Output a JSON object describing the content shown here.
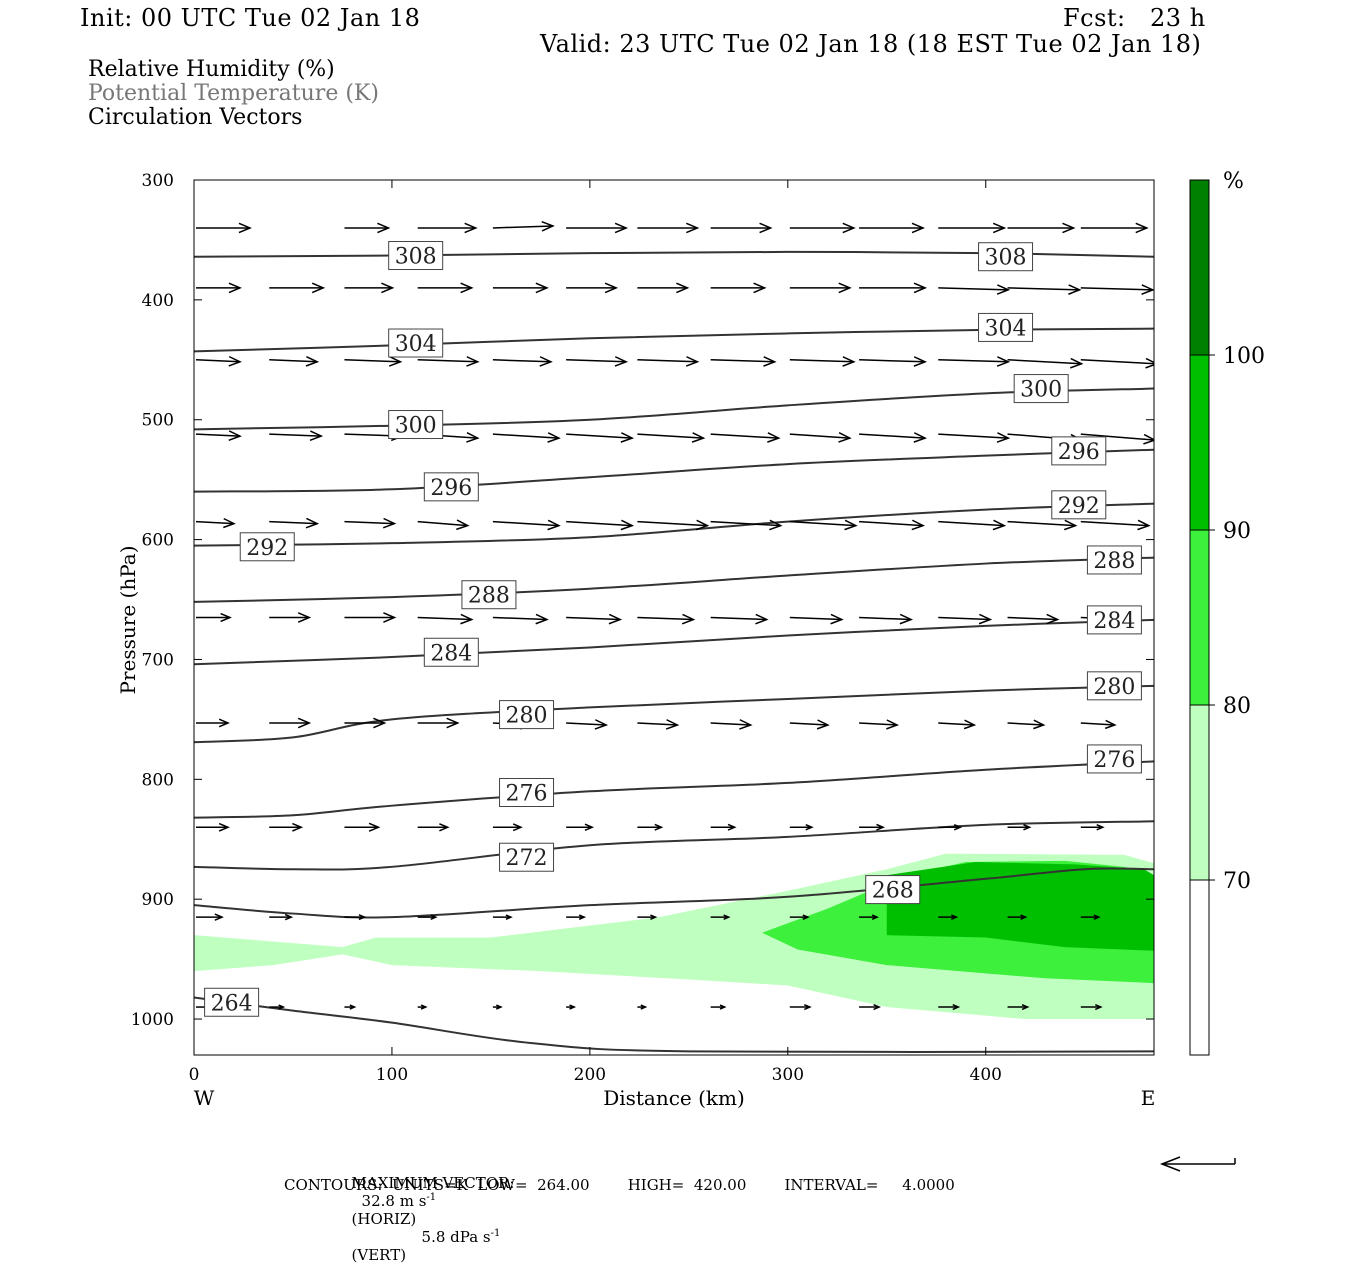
{
  "header": {
    "init": "Init: 00 UTC Tue 02 Jan 18",
    "fcst": "Fcst:   23 h",
    "valid": "Valid: 23 UTC Tue 02 Jan 18 (18 EST Tue 02 Jan 18)"
  },
  "legend": {
    "line1": "Relative Humidity (%)",
    "line2": "Potential Temperature (K)",
    "line3": "Circulation Vectors"
  },
  "footer": {
    "max_vector_label": "MAXIMUM VECTOR:",
    "horiz_value": "32.8 m s",
    "horiz_unit": "(HORIZ)",
    "vert_value": "5.8 dPa s",
    "vert_unit": "(VERT)",
    "exponent": "-1",
    "contours": "CONTOURS:  UNITS=K  LOW=  264.00        HIGH=  420.00        INTERVAL=     4.0000"
  },
  "colors": {
    "rh_70": "#bfffbf",
    "rh_80": "#3cf03c",
    "rh_90": "#00bf00",
    "rh_100": "#008000",
    "contour": "#333333",
    "vector": "#000000"
  },
  "chart_data": {
    "type": "cross-section",
    "xlabel": "Distance (km)",
    "ylabel": "Pressure (hPa)",
    "xlim": [
      0,
      485
    ],
    "ylim": [
      1030,
      300
    ],
    "xticks": [
      0,
      100,
      200,
      300,
      400
    ],
    "yticks": [
      300,
      400,
      500,
      600,
      700,
      800,
      900,
      1000
    ],
    "x_left_label": "W",
    "x_right_label": "E",
    "colorbar": {
      "unit": "%",
      "levels": [
        70,
        80,
        90,
        100
      ],
      "colors": [
        "#bfffbf",
        "#3cf03c",
        "#00bf00",
        "#008000"
      ]
    },
    "theta_contours": [
      {
        "value": 308,
        "points": [
          [
            0,
            364
          ],
          [
            100,
            363
          ],
          [
            200,
            361
          ],
          [
            300,
            360
          ],
          [
            400,
            361
          ],
          [
            485,
            364
          ]
        ],
        "labels": [
          [
            112,
            363
          ],
          [
            410,
            364
          ]
        ]
      },
      {
        "value": 304,
        "points": [
          [
            0,
            443
          ],
          [
            100,
            438
          ],
          [
            200,
            432
          ],
          [
            300,
            428
          ],
          [
            400,
            425
          ],
          [
            485,
            424
          ]
        ],
        "labels": [
          [
            112,
            436
          ],
          [
            410,
            423
          ]
        ]
      },
      {
        "value": 300,
        "points": [
          [
            0,
            508
          ],
          [
            100,
            505
          ],
          [
            200,
            500
          ],
          [
            300,
            488
          ],
          [
            400,
            478
          ],
          [
            485,
            474
          ]
        ],
        "labels": [
          [
            112,
            504
          ],
          [
            428,
            474
          ]
        ]
      },
      {
        "value": 296,
        "points": [
          [
            0,
            560
          ],
          [
            100,
            558
          ],
          [
            200,
            548
          ],
          [
            300,
            537
          ],
          [
            400,
            530
          ],
          [
            485,
            525
          ]
        ],
        "labels": [
          [
            130,
            556
          ],
          [
            447,
            526
          ]
        ]
      },
      {
        "value": 292,
        "points": [
          [
            0,
            605
          ],
          [
            100,
            603
          ],
          [
            200,
            598
          ],
          [
            300,
            585
          ],
          [
            400,
            575
          ],
          [
            485,
            570
          ]
        ],
        "labels": [
          [
            37,
            606
          ],
          [
            447,
            571
          ]
        ]
      },
      {
        "value": 288,
        "points": [
          [
            0,
            652
          ],
          [
            100,
            648
          ],
          [
            200,
            641
          ],
          [
            300,
            630
          ],
          [
            400,
            620
          ],
          [
            485,
            615
          ]
        ],
        "labels": [
          [
            149,
            646
          ],
          [
            465,
            617
          ]
        ]
      },
      {
        "value": 284,
        "points": [
          [
            0,
            704
          ],
          [
            100,
            698
          ],
          [
            200,
            690
          ],
          [
            300,
            680
          ],
          [
            400,
            672
          ],
          [
            485,
            667
          ]
        ],
        "labels": [
          [
            130,
            694
          ],
          [
            465,
            667
          ]
        ]
      },
      {
        "value": 280,
        "points": [
          [
            0,
            769
          ],
          [
            50,
            765
          ],
          [
            100,
            750
          ],
          [
            200,
            740
          ],
          [
            300,
            733
          ],
          [
            400,
            726
          ],
          [
            485,
            722
          ]
        ],
        "labels": [
          [
            168,
            746
          ],
          [
            465,
            722
          ]
        ]
      },
      {
        "value": 276,
        "points": [
          [
            0,
            832
          ],
          [
            50,
            830
          ],
          [
            100,
            822
          ],
          [
            200,
            810
          ],
          [
            300,
            803
          ],
          [
            400,
            792
          ],
          [
            485,
            785
          ]
        ],
        "labels": [
          [
            168,
            811
          ],
          [
            465,
            783
          ]
        ]
      },
      {
        "value": 272,
        "points": [
          [
            0,
            873
          ],
          [
            50,
            875
          ],
          [
            100,
            873
          ],
          [
            200,
            855
          ],
          [
            300,
            848
          ],
          [
            400,
            838
          ],
          [
            485,
            835
          ]
        ],
        "labels": [
          [
            168,
            865
          ],
          [
            0,
            0
          ]
        ]
      },
      {
        "value": 268,
        "points": [
          [
            0,
            905
          ],
          [
            50,
            912
          ],
          [
            100,
            915
          ],
          [
            200,
            905
          ],
          [
            300,
            898
          ],
          [
            400,
            883
          ],
          [
            450,
            875
          ],
          [
            485,
            875
          ]
        ],
        "labels": [
          [
            353,
            892
          ],
          [
            0,
            0
          ]
        ]
      },
      {
        "value": 264,
        "points": [
          [
            0,
            982
          ],
          [
            50,
            993
          ],
          [
            100,
            1003
          ],
          [
            170,
            1020
          ],
          [
            250,
            1027
          ],
          [
            485,
            1027
          ]
        ],
        "labels": [
          [
            19,
            986
          ],
          [
            0,
            0
          ]
        ]
      }
    ],
    "rh_fill": {
      "70": [
        [
          0,
          930
        ],
        [
          75,
          940
        ],
        [
          92,
          932
        ],
        [
          150,
          932
        ],
        [
          185,
          925
        ],
        [
          235,
          915
        ],
        [
          300,
          893
        ],
        [
          350,
          875
        ],
        [
          380,
          862
        ],
        [
          470,
          863
        ],
        [
          485,
          870
        ],
        [
          485,
          1000
        ],
        [
          420,
          1000
        ],
        [
          350,
          990
        ],
        [
          300,
          972
        ],
        [
          250,
          967
        ],
        [
          175,
          960
        ],
        [
          100,
          955
        ],
        [
          75,
          946
        ],
        [
          40,
          955
        ],
        [
          0,
          960
        ]
      ],
      "80": [
        [
          287,
          928
        ],
        [
          320,
          908
        ],
        [
          360,
          880
        ],
        [
          390,
          869
        ],
        [
          440,
          868
        ],
        [
          470,
          873
        ],
        [
          485,
          880
        ],
        [
          485,
          970
        ],
        [
          430,
          966
        ],
        [
          350,
          955
        ],
        [
          305,
          942
        ]
      ],
      "90": [
        [
          350,
          930
        ],
        [
          350,
          880
        ],
        [
          395,
          869
        ],
        [
          445,
          871
        ],
        [
          480,
          875
        ],
        [
          485,
          880
        ],
        [
          485,
          943
        ],
        [
          440,
          940
        ],
        [
          400,
          932
        ]
      ]
    },
    "vectors": [
      {
        "p": 340,
        "x": [
          0,
          75,
          112,
          150,
          187,
          223,
          260,
          300,
          335,
          375,
          410,
          447
        ],
        "u": [
          27,
          22,
          29,
          30,
          30,
          30,
          30,
          32,
          32,
          33,
          33,
          33
        ],
        "v": [
          0,
          0,
          0,
          -1,
          0,
          0,
          0,
          0,
          0,
          0,
          0,
          0
        ]
      },
      {
        "p": 390,
        "x": [
          0,
          37,
          75,
          112,
          150,
          187,
          223,
          260,
          300,
          335,
          375,
          410,
          447
        ],
        "u": [
          22,
          27,
          24,
          27,
          27,
          25,
          25,
          27,
          30,
          33,
          35,
          36,
          36
        ],
        "v": [
          0,
          0,
          0,
          0,
          0,
          0,
          0,
          0,
          0,
          0,
          1,
          1,
          1
        ]
      },
      {
        "p": 450,
        "x": [
          0,
          37,
          75,
          112,
          150,
          187,
          223,
          260,
          300,
          335,
          375,
          410,
          447
        ],
        "u": [
          22,
          24,
          28,
          30,
          29,
          30,
          30,
          32,
          32,
          33,
          35,
          37,
          38
        ],
        "v": [
          1,
          1,
          1,
          1,
          1,
          1,
          1,
          1,
          1,
          1,
          1,
          2,
          2
        ]
      },
      {
        "p": 512,
        "x": [
          0,
          37,
          75,
          112,
          150,
          187,
          223,
          260,
          300,
          335,
          375,
          410,
          447
        ],
        "u": [
          22,
          26,
          29,
          30,
          33,
          33,
          33,
          34,
          30,
          33,
          35,
          37,
          37
        ],
        "v": [
          1,
          1,
          1,
          2,
          2,
          2,
          2,
          2,
          2,
          2,
          2,
          3,
          3
        ]
      },
      {
        "p": 585,
        "x": [
          0,
          37,
          75,
          112,
          150,
          187,
          223,
          260,
          300,
          335,
          375,
          410,
          447
        ],
        "u": [
          19,
          24,
          25,
          25,
          33,
          33,
          35,
          35,
          33,
          32,
          33,
          34,
          34
        ],
        "v": [
          1,
          1,
          1,
          2,
          2,
          2,
          2,
          2,
          2,
          2,
          2,
          2,
          2
        ]
      },
      {
        "p": 665,
        "x": [
          0,
          37,
          75,
          112,
          150,
          187,
          223,
          260,
          300,
          335,
          375,
          410,
          447
        ],
        "u": [
          17,
          20,
          25,
          27,
          27,
          27,
          28,
          28,
          26,
          26,
          26,
          25,
          25
        ],
        "v": [
          0,
          0,
          0,
          1,
          1,
          1,
          1,
          1,
          1,
          1,
          1,
          1,
          1
        ]
      },
      {
        "p": 753,
        "x": [
          0,
          37,
          75,
          112,
          150,
          187,
          223,
          260,
          300,
          335,
          375,
          410,
          447
        ],
        "u": [
          16,
          20,
          20,
          20,
          19,
          20,
          20,
          20,
          19,
          19,
          18,
          18,
          17
        ],
        "v": [
          0,
          0,
          0,
          0,
          1,
          1,
          1,
          1,
          1,
          1,
          1,
          1,
          1
        ]
      },
      {
        "p": 840,
        "x": [
          0,
          37,
          75,
          112,
          150,
          187,
          223,
          260,
          300,
          335,
          375,
          410,
          447
        ],
        "u": [
          16,
          16,
          17,
          15,
          14,
          13,
          12,
          12,
          11,
          12,
          11,
          11,
          11
        ],
        "v": [
          0,
          0,
          0,
          0,
          0,
          0,
          0,
          0,
          0,
          0,
          0,
          0,
          0
        ]
      },
      {
        "p": 915,
        "x": [
          0,
          37,
          75,
          112,
          150,
          187,
          223,
          260,
          300,
          335,
          375,
          410,
          447
        ],
        "u": [
          13,
          11,
          10,
          9,
          9,
          9,
          9,
          9,
          9,
          9,
          9,
          9,
          9
        ],
        "v": [
          0,
          0,
          0,
          0,
          0,
          0,
          0,
          0,
          0,
          0,
          0,
          0,
          0
        ]
      },
      {
        "p": 990,
        "x": [
          0,
          37,
          75,
          112,
          150,
          187,
          223,
          260,
          300,
          335,
          375,
          410,
          447
        ],
        "u": [
          7,
          7,
          5,
          4,
          4,
          4,
          4,
          7,
          10,
          10,
          10,
          10,
          10
        ],
        "v": [
          0,
          0,
          0,
          0,
          0,
          0,
          0,
          0,
          0,
          0,
          0,
          0,
          0
        ]
      }
    ]
  }
}
